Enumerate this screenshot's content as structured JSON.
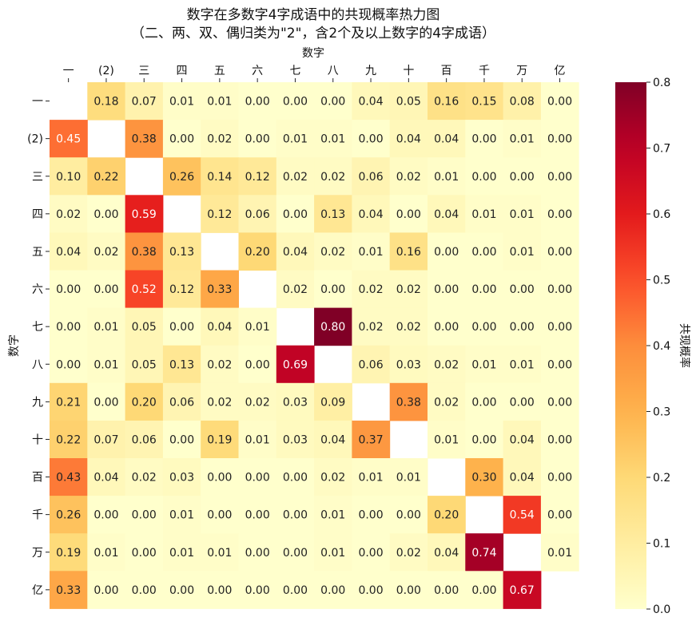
{
  "chart_data": {
    "type": "heatmap",
    "title_lines": [
      "数字在多数字4字成语中的共现概率热力图",
      "（二、两、双、偶归类为\"2\"，含2个及以上数字的4字成语）"
    ],
    "xlabel": "数字",
    "ylabel": "数字",
    "colorbar_label": "共现概率",
    "colormap": "YlOrRd",
    "vmin": 0.0,
    "vmax": 0.8,
    "colorbar_ticks": [
      "0.0",
      "0.1",
      "0.2",
      "0.3",
      "0.4",
      "0.5",
      "0.6",
      "0.7",
      "0.8"
    ],
    "categories": [
      "一",
      "(2)",
      "三",
      "四",
      "五",
      "六",
      "七",
      "八",
      "九",
      "十",
      "百",
      "千",
      "万",
      "亿"
    ],
    "values": [
      [
        null,
        0.18,
        0.07,
        0.01,
        0.01,
        0.0,
        0.0,
        0.0,
        0.04,
        0.05,
        0.16,
        0.15,
        0.08,
        0.0
      ],
      [
        0.45,
        null,
        0.38,
        0.0,
        0.02,
        0.0,
        0.01,
        0.01,
        0.0,
        0.04,
        0.04,
        0.0,
        0.01,
        0.0
      ],
      [
        0.1,
        0.22,
        null,
        0.26,
        0.14,
        0.12,
        0.02,
        0.02,
        0.06,
        0.02,
        0.01,
        0.0,
        0.0,
        0.0
      ],
      [
        0.02,
        0.0,
        0.59,
        null,
        0.12,
        0.06,
        0.0,
        0.13,
        0.04,
        0.0,
        0.04,
        0.01,
        0.01,
        0.0
      ],
      [
        0.04,
        0.02,
        0.38,
        0.13,
        null,
        0.2,
        0.04,
        0.02,
        0.01,
        0.16,
        0.0,
        0.0,
        0.01,
        0.0
      ],
      [
        0.0,
        0.0,
        0.52,
        0.12,
        0.33,
        null,
        0.02,
        0.0,
        0.02,
        0.02,
        0.0,
        0.0,
        0.0,
        0.0
      ],
      [
        0.0,
        0.01,
        0.05,
        0.0,
        0.04,
        0.01,
        null,
        0.8,
        0.02,
        0.02,
        0.0,
        0.0,
        0.0,
        0.0
      ],
      [
        0.0,
        0.01,
        0.05,
        0.13,
        0.02,
        0.0,
        0.69,
        null,
        0.06,
        0.03,
        0.02,
        0.01,
        0.01,
        0.0
      ],
      [
        0.21,
        0.0,
        0.2,
        0.06,
        0.02,
        0.02,
        0.03,
        0.09,
        null,
        0.38,
        0.02,
        0.0,
        0.0,
        0.0
      ],
      [
        0.22,
        0.07,
        0.06,
        0.0,
        0.19,
        0.01,
        0.03,
        0.04,
        0.37,
        null,
        0.01,
        0.0,
        0.04,
        0.0
      ],
      [
        0.43,
        0.04,
        0.02,
        0.03,
        0.0,
        0.0,
        0.0,
        0.02,
        0.01,
        0.01,
        null,
        0.3,
        0.04,
        0.0
      ],
      [
        0.26,
        0.0,
        0.0,
        0.01,
        0.0,
        0.0,
        0.0,
        0.01,
        0.0,
        0.0,
        0.2,
        null,
        0.54,
        0.0
      ],
      [
        0.19,
        0.01,
        0.0,
        0.01,
        0.01,
        0.0,
        0.0,
        0.01,
        0.0,
        0.02,
        0.04,
        0.74,
        null,
        0.01
      ],
      [
        0.33,
        0.0,
        0.0,
        0.0,
        0.0,
        0.0,
        0.0,
        0.0,
        0.0,
        0.0,
        0.0,
        0.0,
        0.67,
        null
      ]
    ]
  }
}
